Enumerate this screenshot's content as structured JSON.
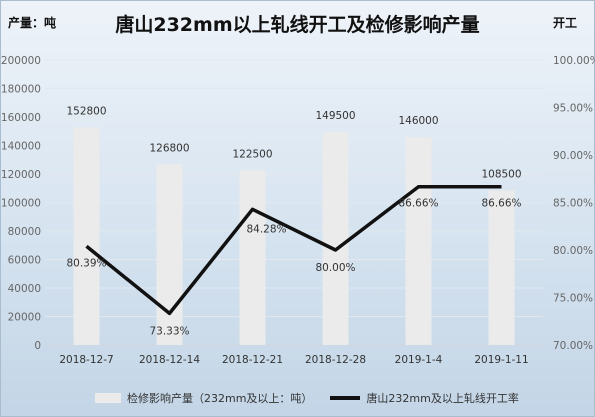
{
  "title": "唐山232mm以上轧线开工及检修影响产量",
  "y_left_unit": "产量：吨",
  "y_right_unit": "开工",
  "legend": {
    "bar_label": "检修影响产量（232mm及以上：吨）",
    "line_label": "唐山232mm及以上轧线开工率"
  },
  "colors": {
    "bar": "#ebebeb",
    "line": "#111111",
    "grid": "#e3e8ee",
    "axis_text": "#666666",
    "label_text": "#333333"
  },
  "chart_data": {
    "type": "bar",
    "categories": [
      "2018-12-7",
      "2018-12-14",
      "2018-12-21",
      "2018-12-28",
      "2019-1-4",
      "2019-1-11"
    ],
    "series": [
      {
        "name": "检修影响产量（232mm及以上：吨）",
        "type": "bar",
        "axis": "left",
        "values": [
          152800,
          126800,
          122500,
          149500,
          146000,
          108500
        ]
      },
      {
        "name": "唐山232mm及以上轧线开工率",
        "type": "line",
        "axis": "right",
        "values": [
          80.39,
          73.33,
          84.28,
          80.0,
          86.66,
          86.66
        ]
      }
    ],
    "bar_labels": [
      "152800",
      "126800",
      "122500",
      "149500",
      "146000",
      "108500"
    ],
    "line_labels": [
      "80.39%",
      "73.33%",
      "84.28%",
      "80.00%",
      "86.66%",
      "86.66%"
    ],
    "y_left": {
      "min": 0,
      "max": 200000,
      "ticks": [
        0,
        20000,
        40000,
        60000,
        80000,
        100000,
        120000,
        140000,
        160000,
        180000,
        200000
      ]
    },
    "y_right": {
      "min": 70,
      "max": 100,
      "ticks": [
        "70.00%",
        "75.00%",
        "80.00%",
        "85.00%",
        "90.00%",
        "95.00%",
        "100.00%"
      ],
      "tick_values": [
        70,
        75,
        80,
        85,
        90,
        95,
        100
      ]
    },
    "grid": true,
    "legend_position": "bottom"
  }
}
